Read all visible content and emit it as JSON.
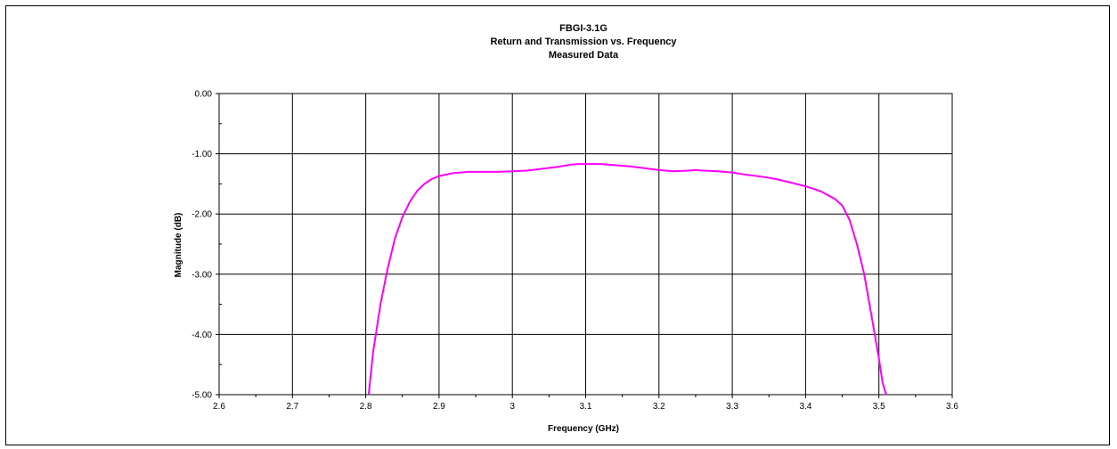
{
  "chart_data": {
    "type": "line",
    "title": "FBGI-3.1G",
    "subtitle": [
      "Return and Transmission vs. Frequency",
      "Measured Data"
    ],
    "xlabel": "Frequency (GHz)",
    "ylabel": "Magnitude (dB)",
    "xlim": [
      2.6,
      3.6
    ],
    "ylim": [
      -5.0,
      0.0
    ],
    "x_ticks": [
      "2.6",
      "2.7",
      "2.8",
      "2.9",
      "3",
      "3.1",
      "3.2",
      "3.3",
      "3.4",
      "3.5",
      "3.6"
    ],
    "y_ticks": [
      "0.00",
      "-1.00",
      "-2.00",
      "-3.00",
      "-4.00",
      "-5.00"
    ],
    "grid": true,
    "legend": "none",
    "series": [
      {
        "color": "#ff00ff",
        "x": [
          2.804,
          2.81,
          2.82,
          2.83,
          2.84,
          2.85,
          2.86,
          2.87,
          2.88,
          2.89,
          2.9,
          2.92,
          2.94,
          2.96,
          2.98,
          3.0,
          3.02,
          3.04,
          3.06,
          3.08,
          3.09,
          3.1,
          3.12,
          3.14,
          3.16,
          3.18,
          3.2,
          3.22,
          3.24,
          3.25,
          3.26,
          3.28,
          3.3,
          3.32,
          3.34,
          3.36,
          3.38,
          3.4,
          3.42,
          3.44,
          3.45,
          3.46,
          3.47,
          3.48,
          3.49,
          3.5,
          3.505,
          3.51
        ],
        "y": [
          -5.0,
          -4.3,
          -3.5,
          -2.9,
          -2.4,
          -2.05,
          -1.8,
          -1.62,
          -1.5,
          -1.42,
          -1.37,
          -1.32,
          -1.3,
          -1.3,
          -1.3,
          -1.29,
          -1.28,
          -1.25,
          -1.22,
          -1.18,
          -1.17,
          -1.17,
          -1.17,
          -1.19,
          -1.21,
          -1.24,
          -1.27,
          -1.29,
          -1.28,
          -1.27,
          -1.28,
          -1.29,
          -1.31,
          -1.35,
          -1.38,
          -1.42,
          -1.48,
          -1.54,
          -1.62,
          -1.75,
          -1.86,
          -2.1,
          -2.5,
          -3.0,
          -3.7,
          -4.4,
          -4.8,
          -5.0
        ]
      }
    ]
  }
}
